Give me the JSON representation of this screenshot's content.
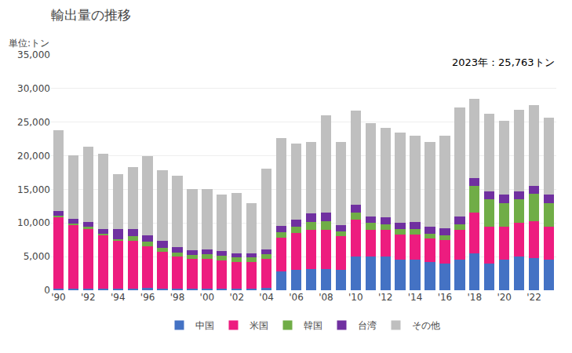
{
  "chart_data": {
    "type": "bar",
    "title": "輸出量の推移",
    "ylabel": "単位:トン",
    "annotations": [
      "2023年：25,763トン"
    ],
    "stacked": true,
    "grid": true,
    "legend": "bottom",
    "categories": [
      "'90",
      null,
      "'92",
      null,
      "'94",
      null,
      "'96",
      null,
      "'98",
      null,
      "'00",
      null,
      "'02",
      null,
      "'04",
      null,
      "'06",
      null,
      "'08",
      null,
      "'10",
      null,
      "'12",
      null,
      "'14",
      null,
      "'16",
      null,
      "'18",
      null,
      "'20",
      null,
      "'22",
      null
    ],
    "series": [
      {
        "name": "中国",
        "color": "#4472C4",
        "values": [
          200,
          200,
          200,
          200,
          200,
          200,
          300,
          200,
          200,
          200,
          200,
          200,
          200,
          200,
          300,
          2800,
          3000,
          3200,
          3200,
          3000,
          5000,
          5000,
          5000,
          4500,
          4500,
          4200,
          4000,
          4500,
          5500,
          4000,
          4500,
          5000,
          4800,
          4500
        ]
      },
      {
        "name": "米国",
        "color": "#ED1C7F",
        "values": [
          10700,
          9500,
          9000,
          8000,
          7200,
          7200,
          6200,
          5500,
          4800,
          4500,
          4500,
          4200,
          4000,
          4000,
          4400,
          5000,
          5500,
          5800,
          5800,
          5000,
          5500,
          4000,
          4000,
          3800,
          3800,
          3500,
          3500,
          4500,
          6000,
          5500,
          5000,
          5000,
          5500,
          5000
        ]
      },
      {
        "name": "韓国",
        "color": "#70AD47",
        "values": [
          200,
          200,
          200,
          200,
          200,
          700,
          700,
          600,
          600,
          600,
          700,
          700,
          700,
          700,
          700,
          800,
          1000,
          1200,
          1300,
          800,
          1000,
          1000,
          800,
          800,
          800,
          700,
          700,
          800,
          4000,
          4000,
          3500,
          3500,
          4000,
          3500
        ]
      },
      {
        "name": "台湾",
        "color": "#7030A0",
        "values": [
          700,
          700,
          700,
          700,
          1500,
          1000,
          1000,
          1000,
          800,
          700,
          700,
          700,
          600,
          600,
          700,
          1000,
          1000,
          1200,
          1200,
          900,
          1200,
          1000,
          1000,
          900,
          1000,
          1000,
          1000,
          1200,
          1200,
          1200,
          1200,
          1200,
          1200,
          1200
        ]
      },
      {
        "name": "その他",
        "color": "#BFBFBF",
        "values": [
          12000,
          9500,
          11200,
          11200,
          8200,
          9200,
          11800,
          10500,
          10600,
          9000,
          9000,
          8400,
          9000,
          7500,
          12000,
          13000,
          11300,
          10600,
          14500,
          12400,
          14000,
          13900,
          13300,
          13500,
          12900,
          12700,
          13800,
          16200,
          11800,
          11600,
          11000,
          12100,
          12000,
          11500
        ]
      }
    ],
    "ylim": [
      0,
      35000
    ],
    "yticks": [
      0,
      {
        "value": 5000,
        "label": "5,000"
      },
      {
        "value": 10000,
        "label": "10,000"
      },
      {
        "value": 15000,
        "label": "15,000"
      },
      {
        "value": 20000,
        "label": "20,000"
      },
      {
        "value": 25000,
        "label": "25,000"
      },
      {
        "value": 30000,
        "label": "30,000"
      },
      {
        "value": 35000,
        "label": "35,000"
      }
    ]
  }
}
